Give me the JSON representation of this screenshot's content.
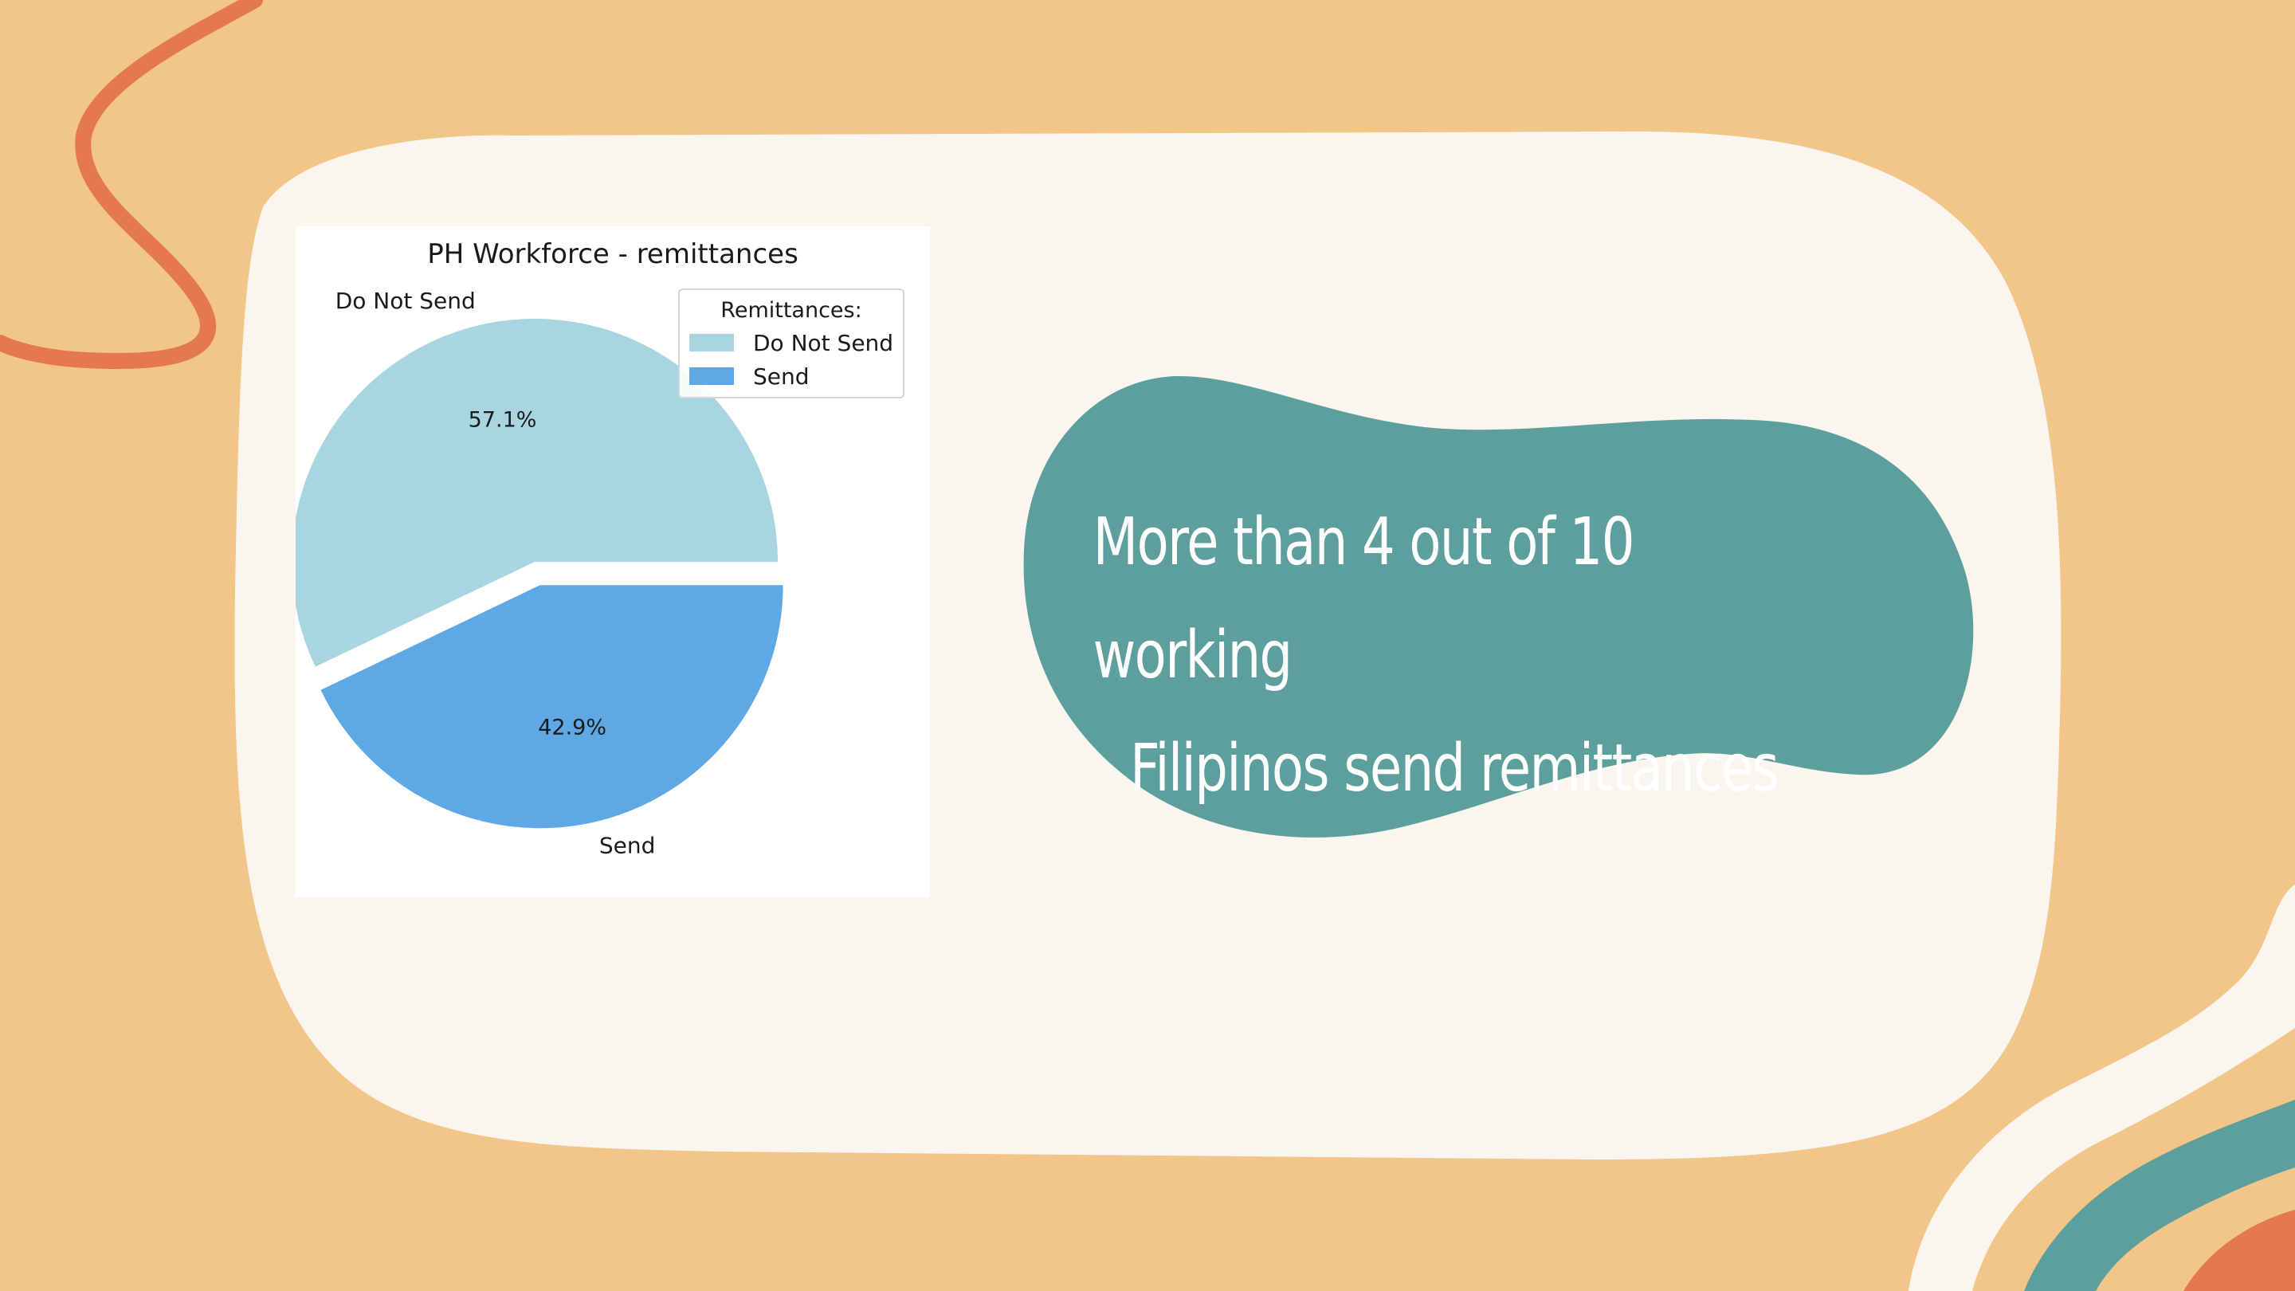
{
  "callout": {
    "line1": "More than 4 out of 10 working",
    "line2": "Filipinos send remittances"
  },
  "chart_data": {
    "type": "pie",
    "title": "PH Workforce - remittances",
    "labels": [
      "Do Not Send",
      "Send"
    ],
    "values": [
      57.1,
      42.9
    ],
    "percent_labels": [
      "57.1%",
      "42.9%"
    ],
    "colors": [
      "#a8d5df",
      "#5fa8e6"
    ],
    "exploded": [
      "Send"
    ],
    "legend": {
      "title": "Remittances:",
      "placement": "upper-right",
      "entries": [
        "Do Not Send",
        "Send"
      ]
    }
  },
  "theme": {
    "background": "#f2c588",
    "card": "#faf5ee",
    "teal": "#5c9f9c",
    "orange": "#e4784f"
  }
}
